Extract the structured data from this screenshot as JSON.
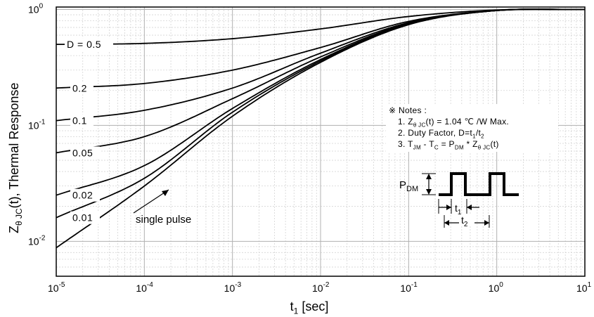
{
  "chart_data": {
    "type": "line",
    "x_scale": "log",
    "y_scale": "log",
    "xlim": [
      1e-05,
      10
    ],
    "ylim": [
      0.005,
      1.05
    ],
    "grid": true,
    "xlabel": {
      "main": "t",
      "sub": "1",
      "rest": " [sec]"
    },
    "ylabel": {
      "main": "Z",
      "sub": "θ JC",
      "rest": "(t), Thermal Response"
    },
    "x_ticks": [
      {
        "base": "10",
        "exp": "-5",
        "value": 1e-05
      },
      {
        "base": "10",
        "exp": "-4",
        "value": 0.0001
      },
      {
        "base": "10",
        "exp": "-3",
        "value": 0.001
      },
      {
        "base": "10",
        "exp": "-2",
        "value": 0.01
      },
      {
        "base": "10",
        "exp": "-1",
        "value": 0.1
      },
      {
        "base": "10",
        "exp": "0",
        "value": 1
      },
      {
        "base": "10",
        "exp": "1",
        "value": 10
      }
    ],
    "y_ticks": [
      {
        "base": "10",
        "exp": "-2",
        "value": 0.01
      },
      {
        "base": "10",
        "exp": "-1",
        "value": 0.1
      },
      {
        "base": "10",
        "exp": "0",
        "value": 1
      }
    ],
    "series": [
      {
        "name": "D = 0.5",
        "label": "D = 0.5",
        "x": [
          1e-05,
          0.0001,
          0.001,
          0.01,
          0.1,
          1,
          10
        ],
        "y": [
          0.5,
          0.51,
          0.56,
          0.68,
          0.87,
          0.99,
          1.0
        ]
      },
      {
        "name": "0.2",
        "label": "0.2",
        "x": [
          1e-05,
          0.0001,
          0.001,
          0.01,
          0.1,
          1,
          10
        ],
        "y": [
          0.21,
          0.23,
          0.3,
          0.47,
          0.79,
          0.98,
          1.0
        ]
      },
      {
        "name": "0.1",
        "label": "0.1",
        "x": [
          1e-05,
          0.0001,
          0.001,
          0.01,
          0.1,
          1,
          10
        ],
        "y": [
          0.11,
          0.135,
          0.21,
          0.42,
          0.77,
          0.98,
          1.0
        ]
      },
      {
        "name": "0.05",
        "label": "0.05",
        "x": [
          1e-05,
          0.0001,
          0.001,
          0.01,
          0.1,
          1,
          10
        ],
        "y": [
          0.058,
          0.08,
          0.17,
          0.39,
          0.76,
          0.98,
          1.0
        ]
      },
      {
        "name": "0.02",
        "label": "0.02",
        "x": [
          1e-05,
          0.0001,
          0.001,
          0.01,
          0.1,
          1,
          10
        ],
        "y": [
          0.025,
          0.045,
          0.14,
          0.37,
          0.75,
          0.98,
          1.0
        ]
      },
      {
        "name": "0.01",
        "label": "0.01",
        "x": [
          1e-05,
          0.0001,
          0.001,
          0.01,
          0.1,
          1,
          10
        ],
        "y": [
          0.016,
          0.035,
          0.13,
          0.36,
          0.75,
          0.98,
          1.0
        ]
      },
      {
        "name": "single pulse",
        "label": "single pulse",
        "x": [
          1e-05,
          0.0001,
          0.001,
          0.01,
          0.1,
          1,
          10
        ],
        "y": [
          0.0088,
          0.03,
          0.12,
          0.35,
          0.74,
          0.98,
          1.0
        ]
      }
    ]
  },
  "notes": {
    "header": "※  Notes :",
    "n1": {
      "a": "1. Z",
      "b": "θ JC",
      "c": "(t) = 1.04 ℃ /W Max."
    },
    "n2": {
      "a": "2. Duty Factor, D=t",
      "b": "1",
      "c": "/t",
      "d": "2"
    },
    "n3": {
      "a": "3. T",
      "b": "JM",
      "c": " - T",
      "d": "C",
      "e": " = P",
      "f": "DM",
      "g": " * Z",
      "h": "θ JC",
      "i": "(t)"
    }
  },
  "pulse_diagram": {
    "pdm": {
      "main": "P",
      "sub": "DM"
    },
    "t1": {
      "main": "t",
      "sub": "1"
    },
    "t2": {
      "main": "t",
      "sub": "2"
    }
  }
}
